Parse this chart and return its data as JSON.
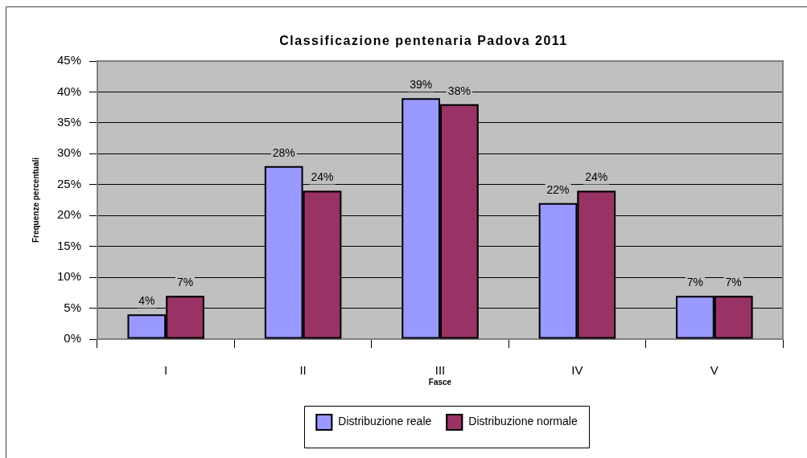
{
  "chart_data": {
    "type": "bar",
    "title": "Classificazione pentenaria Padova 2011",
    "xlabel": "Fasce",
    "ylabel": "Frequenze percentuali",
    "categories": [
      "I",
      "II",
      "III",
      "IV",
      "V"
    ],
    "series": [
      {
        "name": "Distribuzione reale",
        "color": "#9999ff",
        "values": [
          4,
          28,
          39,
          22,
          7
        ],
        "value_labels": [
          "4%",
          "28%",
          "39%",
          "22%",
          "7%"
        ]
      },
      {
        "name": "Distribuzione normale",
        "color": "#993366",
        "values": [
          7,
          24,
          38,
          24,
          7
        ],
        "value_labels": [
          "7%",
          "24%",
          "38%",
          "24%",
          "7%"
        ]
      }
    ],
    "ylim": [
      0,
      45
    ],
    "yticks": [
      {
        "value": 0,
        "label": "0%"
      },
      {
        "value": 5,
        "label": "5%"
      },
      {
        "value": 10,
        "label": "10%"
      },
      {
        "value": 15,
        "label": "15%"
      },
      {
        "value": 20,
        "label": "20%"
      },
      {
        "value": 25,
        "label": "25%"
      },
      {
        "value": 30,
        "label": "30%"
      },
      {
        "value": 35,
        "label": "35%"
      },
      {
        "value": 40,
        "label": "40%"
      },
      {
        "value": 45,
        "label": "45%"
      }
    ],
    "grid": "y",
    "legend": "bottom"
  }
}
